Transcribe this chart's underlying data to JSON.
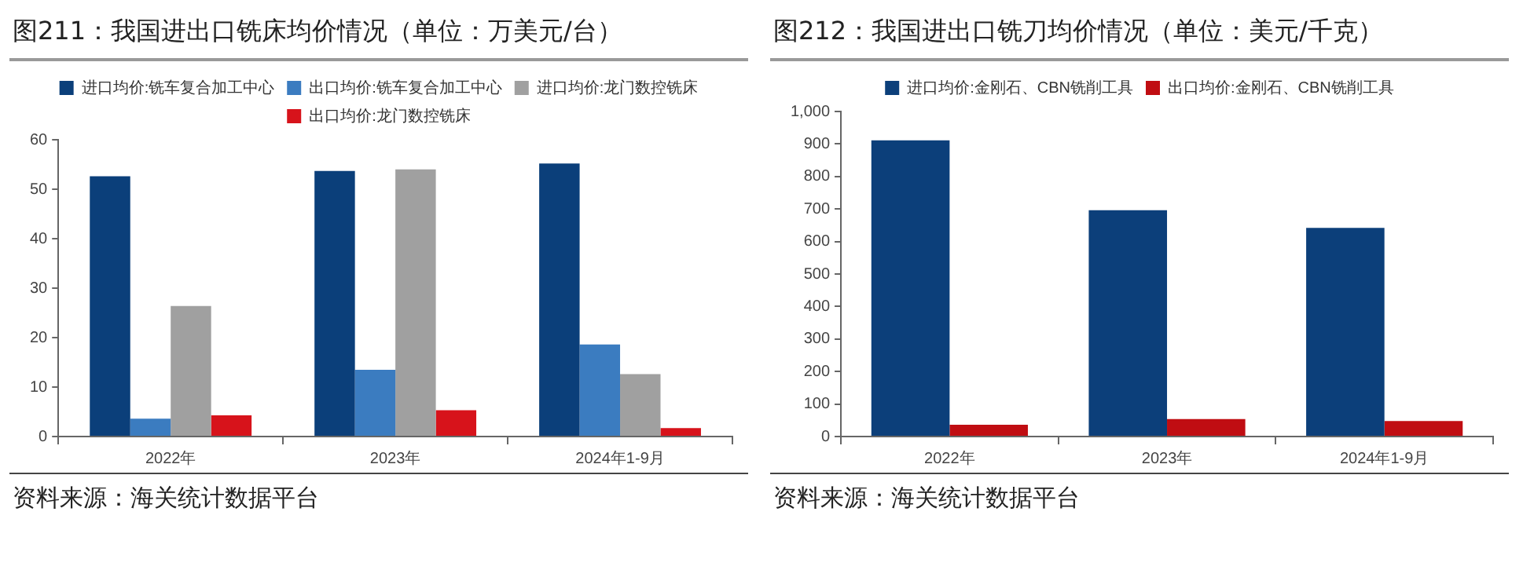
{
  "chart_data": [
    {
      "type": "bar",
      "title": "图211：我国进出口铣床均价情况（单位：万美元/台）",
      "categories": [
        "2022年",
        "2023年",
        "2024年1-9月"
      ],
      "series": [
        {
          "name": "进口均价:铣车复合加工中心",
          "color": "#0b3f7a",
          "values": [
            52.6,
            53.7,
            55.2
          ]
        },
        {
          "name": "出口均价:铣车复合加工中心",
          "color": "#3b7cc0",
          "values": [
            3.6,
            13.5,
            18.6
          ]
        },
        {
          "name": "进口均价:龙门数控铣床",
          "color": "#a0a0a0",
          "values": [
            26.4,
            54.0,
            12.6
          ]
        },
        {
          "name": "出口均价:龙门数控铣床",
          "color": "#d7131b",
          "values": [
            4.3,
            5.3,
            1.7
          ]
        }
      ],
      "ylim": [
        0,
        60
      ],
      "yticks": [
        0,
        10,
        20,
        30,
        40,
        50,
        60
      ],
      "grid": false,
      "legend": "top",
      "annotations": [
        "资料来源：海关统计数据平台"
      ]
    },
    {
      "type": "bar",
      "title": "图212：我国进出口铣刀均价情况（单位：美元/千克）",
      "categories": [
        "2022年",
        "2023年",
        "2024年1-9月"
      ],
      "series": [
        {
          "name": "进口均价:金刚石、CBN铣削工具",
          "color": "#0c3f7a",
          "values": [
            911,
            696,
            642
          ]
        },
        {
          "name": "出口均价:金刚石、CBN铣削工具",
          "color": "#c00d12",
          "values": [
            36,
            54,
            48
          ]
        }
      ],
      "ylim": [
        0,
        1000
      ],
      "yticks": [
        0,
        100,
        200,
        300,
        400,
        500,
        600,
        700,
        800,
        900,
        {
          "value": 1000,
          "label": "1,000"
        }
      ],
      "grid": false,
      "legend": "top",
      "annotations": [
        "资料来源：海关统计数据平台"
      ]
    }
  ]
}
